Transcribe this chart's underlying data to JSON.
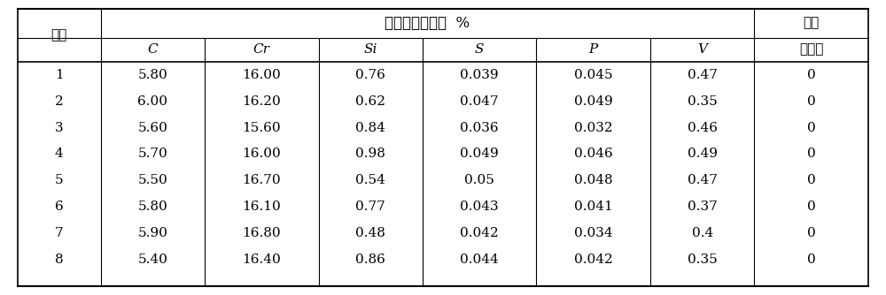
{
  "title_main": "铬基合金钢成分  %",
  "title_right": "渣中",
  "col_header_left": "炉号",
  "col_header_right": "六价铬",
  "sub_headers": [
    "C",
    "Cr",
    "Si",
    "S",
    "P",
    "V"
  ],
  "rows": [
    [
      "1",
      "5.80",
      "16.00",
      "0.76",
      "0.039",
      "0.045",
      "0.47",
      "0"
    ],
    [
      "2",
      "6.00",
      "16.20",
      "0.62",
      "0.047",
      "0.049",
      "0.35",
      "0"
    ],
    [
      "3",
      "5.60",
      "15.60",
      "0.84",
      "0.036",
      "0.032",
      "0.46",
      "0"
    ],
    [
      "4",
      "5.70",
      "16.00",
      "0.98",
      "0.049",
      "0.046",
      "0.49",
      "0"
    ],
    [
      "5",
      "5.50",
      "16.70",
      "0.54",
      "0.05",
      "0.048",
      "0.47",
      "0"
    ],
    [
      "6",
      "5.80",
      "16.10",
      "0.77",
      "0.043",
      "0.041",
      "0.37",
      "0"
    ],
    [
      "7",
      "5.90",
      "16.80",
      "0.48",
      "0.042",
      "0.034",
      "0.4",
      "0"
    ],
    [
      "8",
      "5.40",
      "16.40",
      "0.86",
      "0.044",
      "0.042",
      "0.35",
      "0"
    ]
  ],
  "bg_color": "#ffffff",
  "text_color": "#000000",
  "line_color": "#000000",
  "font_size": 11,
  "header_font_size": 11
}
